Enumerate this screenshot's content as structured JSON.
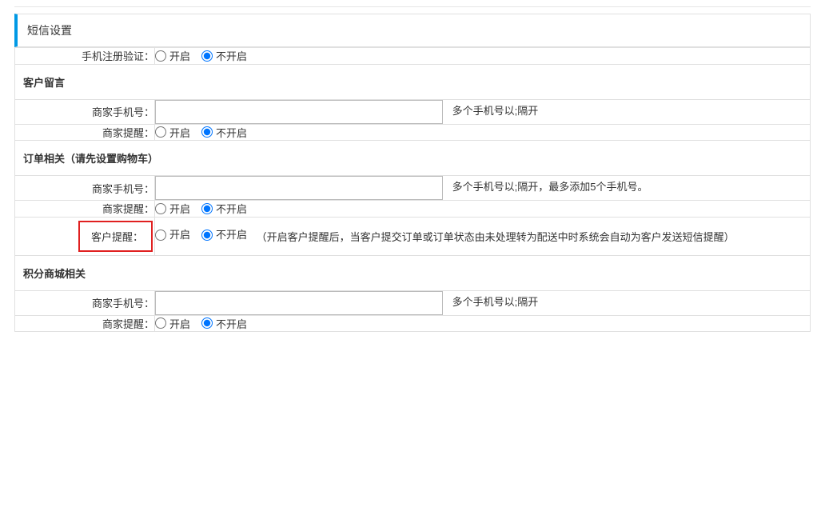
{
  "page": {
    "title": "短信设置"
  },
  "options": {
    "on": "开启",
    "off": "不开启"
  },
  "rows": {
    "phone_register": {
      "label": "手机注册验证：",
      "selected": "off"
    }
  },
  "sections": {
    "customer_msg": {
      "title": "客户留言",
      "merchant_phone": {
        "label": "商家手机号：",
        "value": "",
        "hint": "多个手机号以;隔开"
      },
      "merchant_remind": {
        "label": "商家提醒：",
        "selected": "off"
      }
    },
    "order": {
      "title": "订单相关（请先设置购物车）",
      "merchant_phone": {
        "label": "商家手机号：",
        "value": "",
        "hint": "多个手机号以;隔开，最多添加5个手机号。"
      },
      "merchant_remind": {
        "label": "商家提醒：",
        "selected": "off"
      },
      "customer_remind": {
        "label": "客户提醒：",
        "selected": "off",
        "note": "（开启客户提醒后，当客户提交订单或订单状态由未处理转为配送中时系统会自动为客户发送短信提醒）"
      }
    },
    "points_mall": {
      "title": "积分商城相关",
      "merchant_phone": {
        "label": "商家手机号：",
        "value": "",
        "hint": "多个手机号以;隔开"
      },
      "merchant_remind": {
        "label": "商家提醒：",
        "selected": "off"
      }
    }
  }
}
